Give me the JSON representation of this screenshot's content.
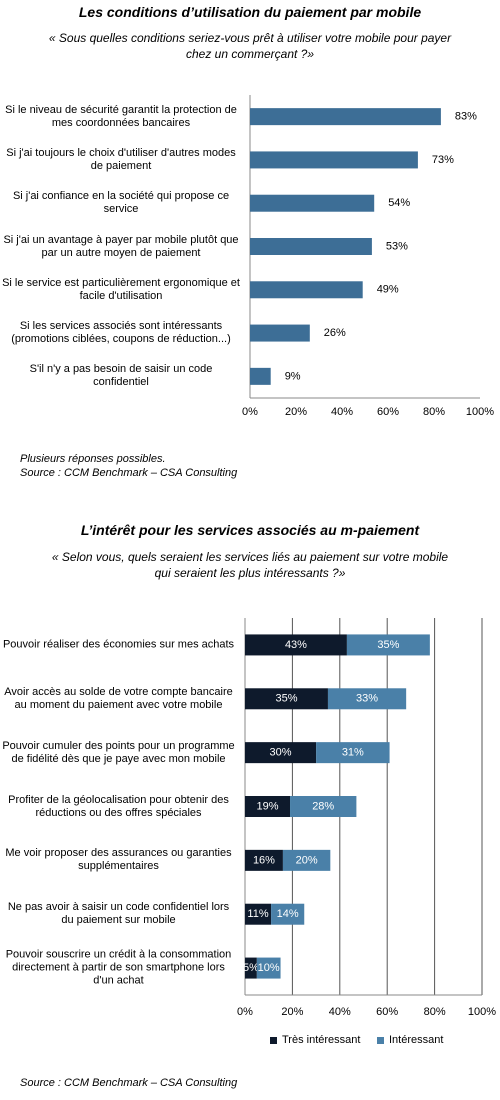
{
  "chart_data": [
    {
      "type": "bar",
      "orientation": "horizontal",
      "title": "Les conditions d’utilisation du paiement par mobile",
      "subtitle": "« Sous quelles conditions seriez-vous prêt à utiliser votre mobile pour payer chez un commerçant ?»",
      "categories": [
        "Si le niveau de sécurité garantit la protection de mes coordonnées bancaires",
        "Si j'ai toujours le choix d'utiliser d'autres modes de paiement",
        "Si j'ai confiance en la société qui propose ce service",
        "Si j'ai un avantage à payer par mobile plutôt que par un autre moyen de paiement",
        "Si le service est particulièrement ergonomique et facile d'utilisation",
        "Si les services associés sont intéressants (promotions ciblées, coupons de réduction...)",
        "S'il n'y a pas besoin de saisir un code confidentiel"
      ],
      "values": [
        83,
        73,
        54,
        53,
        49,
        26,
        9
      ],
      "value_labels": [
        "83%",
        "73%",
        "54%",
        "53%",
        "49%",
        "26%",
        "9%"
      ],
      "color": "#3d6e96",
      "xlim": [
        0,
        100
      ],
      "xticks": [
        {
          "value": 0,
          "label": "0%"
        },
        {
          "value": 20,
          "label": "20%"
        },
        {
          "value": 40,
          "label": "40%"
        },
        {
          "value": 60,
          "label": "60%"
        },
        {
          "value": 80,
          "label": "80%"
        },
        {
          "value": 100,
          "label": "100%"
        }
      ],
      "grid": false,
      "note": "Plusieurs réponses possibles.",
      "source": "Source : CCM Benchmark – CSA Consulting"
    },
    {
      "type": "bar",
      "orientation": "horizontal",
      "stacked": true,
      "title": "L’intérêt pour les services associés au m-paiement",
      "subtitle": "« Selon vous, quels seraient les services liés au paiement sur votre mobile qui seraient les plus intéressants ?»",
      "categories": [
        "Pouvoir réaliser des économies sur mes achats",
        "Avoir accès au solde de votre compte bancaire au moment du paiement avec votre mobile",
        "Pouvoir cumuler des points pour un programme de fidélité dès que je paye avec mon mobile",
        "Profiter de la géolocalisation pour obtenir des réductions ou des offres spéciales",
        "Me voir proposer des assurances ou garanties supplémentaires",
        "Ne pas avoir à saisir un code confidentiel lors du paiement sur mobile",
        "Pouvoir souscrire un crédit à la consommation directement à partir de son smartphone lors d'un achat"
      ],
      "series": [
        {
          "name": "Très intéressant",
          "color": "#0e1a2c",
          "values": [
            43,
            35,
            30,
            19,
            16,
            11,
            5
          ],
          "value_labels": [
            "43%",
            "35%",
            "30%",
            "19%",
            "16%",
            "11%",
            "5%"
          ]
        },
        {
          "name": "Intéressant",
          "color": "#4a80a8",
          "values": [
            35,
            33,
            31,
            28,
            20,
            14,
            10
          ],
          "value_labels": [
            "35%",
            "33%",
            "31%",
            "28%",
            "20%",
            "14%",
            "10%"
          ]
        }
      ],
      "xlim": [
        0,
        100
      ],
      "xticks": [
        {
          "value": 0,
          "label": "0%"
        },
        {
          "value": 20,
          "label": "20%"
        },
        {
          "value": 40,
          "label": "40%"
        },
        {
          "value": 60,
          "label": "60%"
        },
        {
          "value": 80,
          "label": "80%"
        },
        {
          "value": 100,
          "label": "100%"
        }
      ],
      "grid": true,
      "legend": "bottom",
      "source": "Source : CCM Benchmark – CSA Consulting"
    }
  ]
}
